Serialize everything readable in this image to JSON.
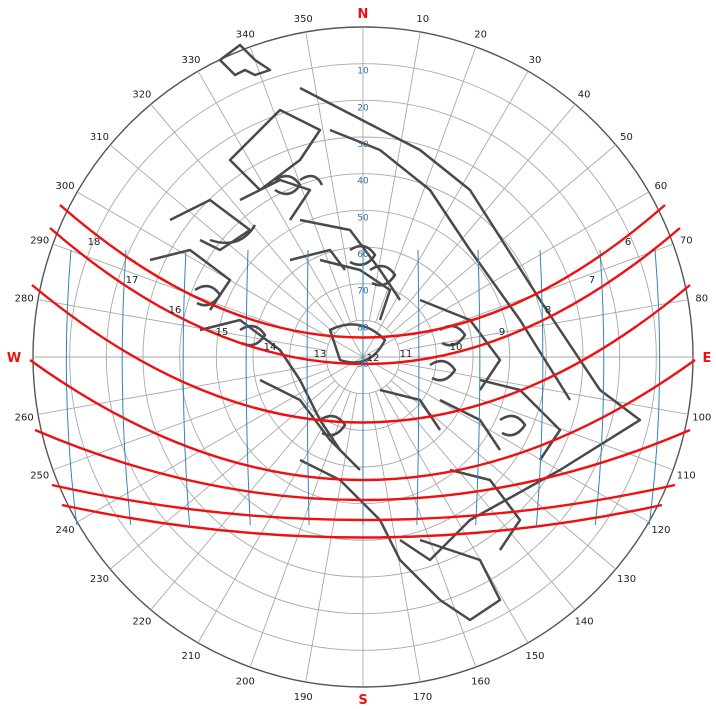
{
  "cardinals": {
    "north": "N",
    "south": "S",
    "east": "E",
    "west": "W"
  },
  "azimuth_labels": [
    "10",
    "20",
    "30",
    "40",
    "50",
    "60",
    "70",
    "80",
    "100",
    "110",
    "120",
    "130",
    "140",
    "150",
    "160",
    "170",
    "190",
    "200",
    "210",
    "220",
    "230",
    "240",
    "250",
    "260",
    "280",
    "290",
    "300",
    "310",
    "320",
    "330",
    "340",
    "350"
  ],
  "altitude_labels": [
    "10",
    "20",
    "30",
    "40",
    "50",
    "60",
    "70",
    "80",
    "90"
  ],
  "hour_labels": [
    "6",
    "7",
    "8",
    "9",
    "10",
    "11",
    "12",
    "13",
    "14",
    "15",
    "16",
    "17",
    "18"
  ],
  "colors": {
    "sun_path": "#ee1111",
    "hour_line": "#2f86b7",
    "grid": "#a9a9a9",
    "cardinal": "#ee1111",
    "obstruction": "#444444"
  }
}
